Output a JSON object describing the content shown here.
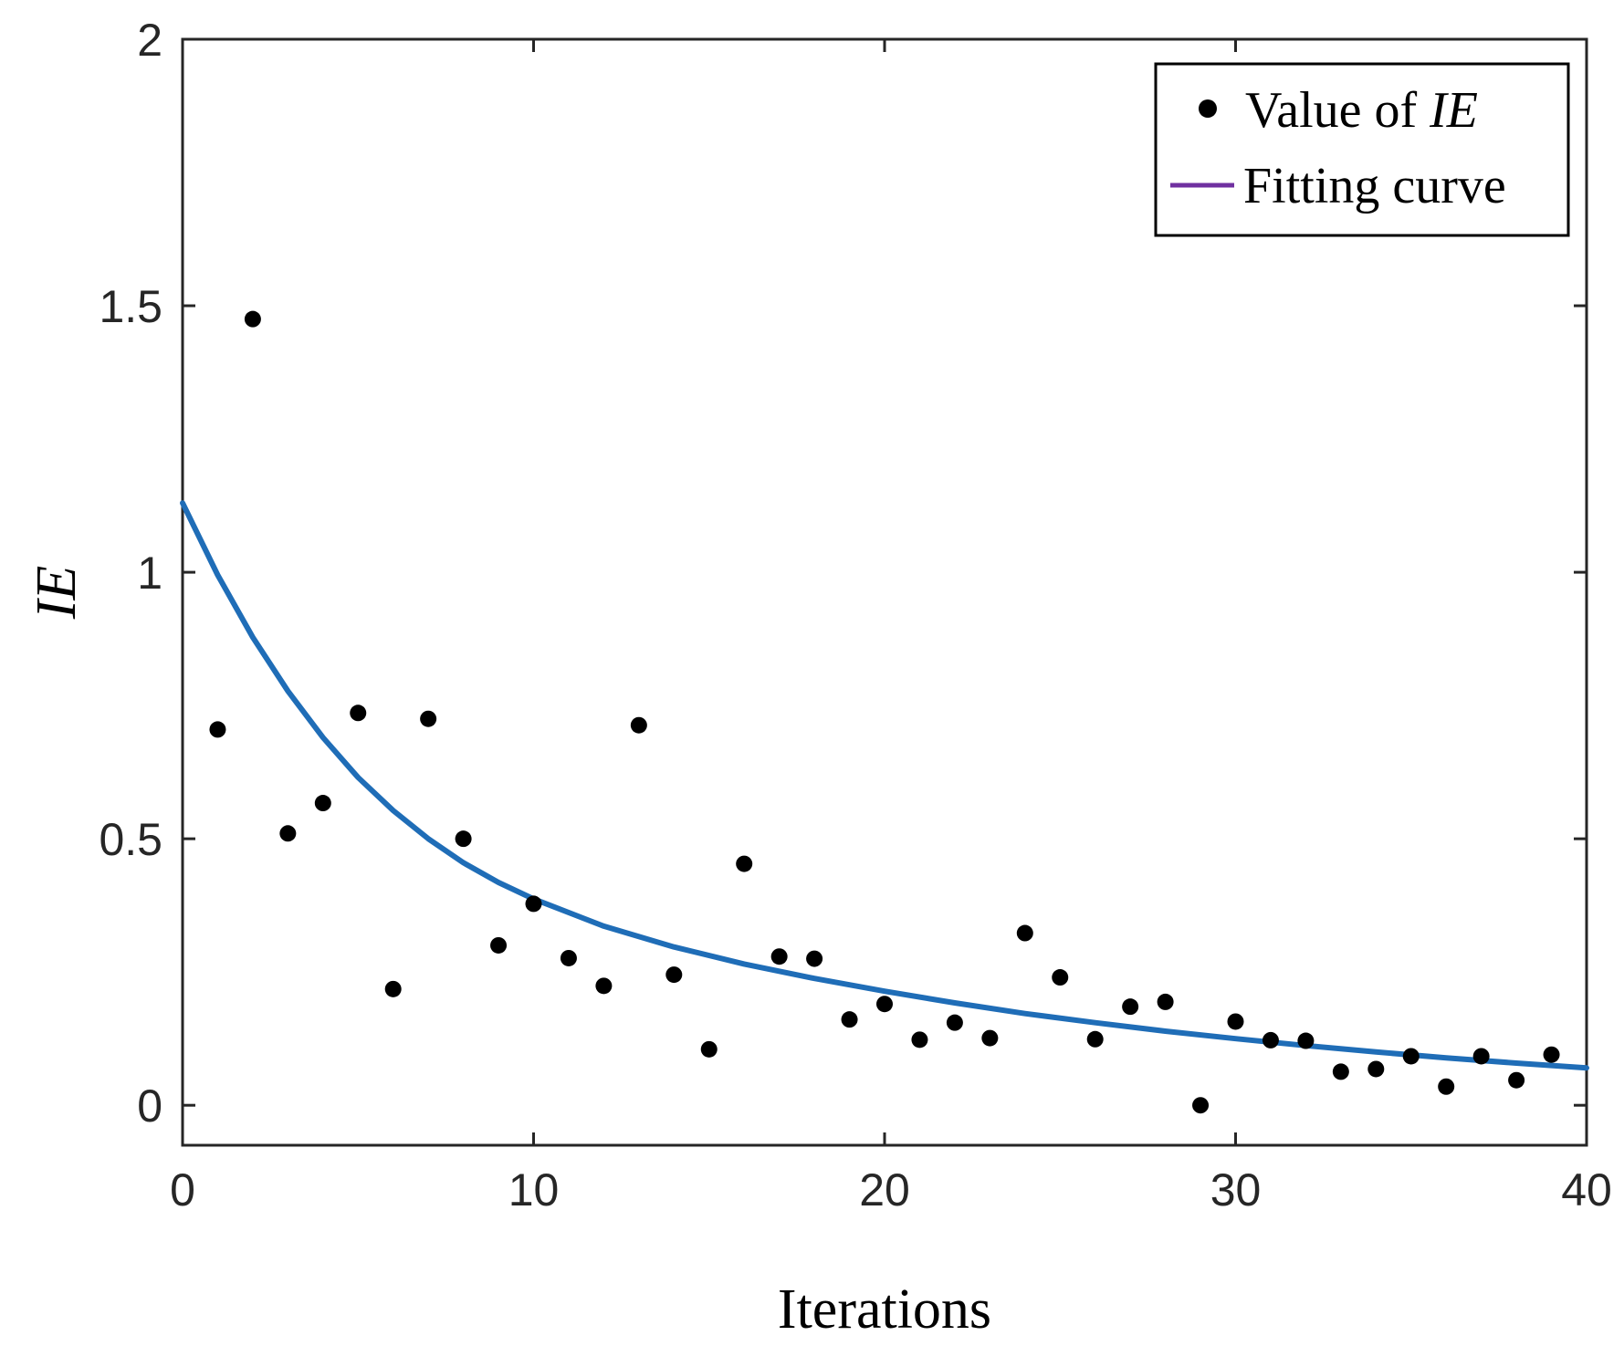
{
  "chart_data": {
    "type": "scatter",
    "title": "",
    "xlabel": "Iterations",
    "ylabel": "IE",
    "xlim": [
      0,
      40
    ],
    "ylim": [
      -0.075,
      2
    ],
    "x_ticks": [
      0,
      10,
      20,
      30,
      40
    ],
    "x_tick_labels": [
      "0",
      "10",
      "20",
      "30",
      "40"
    ],
    "y_ticks": [
      0,
      0.5,
      1,
      1.5,
      2
    ],
    "y_tick_labels": [
      "0",
      "0.5",
      "1",
      "1.5",
      "2"
    ],
    "grid": false,
    "legend_position": "top-right",
    "legend": [
      {
        "prefix": "Value of ",
        "italic": "IE",
        "marker": "dot"
      },
      {
        "prefix": "Fitting curve",
        "italic": "",
        "marker": "line"
      }
    ],
    "series": [
      {
        "name": "Value of IE",
        "kind": "scatter",
        "color": "#000000",
        "x": [
          1,
          2,
          3,
          4,
          5,
          6,
          7,
          8,
          9,
          10,
          11,
          12,
          13,
          14,
          15,
          16,
          17,
          18,
          19,
          20,
          21,
          22,
          23,
          24,
          25,
          26,
          27,
          28,
          29,
          30,
          31,
          32,
          33,
          34,
          35,
          36,
          37,
          38,
          39
        ],
        "y": [
          0.705,
          1.475,
          0.51,
          0.567,
          0.736,
          0.218,
          0.725,
          0.5,
          0.3,
          0.378,
          0.276,
          0.224,
          0.713,
          0.245,
          0.105,
          0.453,
          0.279,
          0.275,
          0.161,
          0.19,
          0.123,
          0.155,
          0.126,
          0.323,
          0.24,
          0.124,
          0.185,
          0.194,
          0.0,
          0.157,
          0.122,
          0.121,
          0.063,
          0.068,
          0.092,
          0.035,
          0.092,
          0.047,
          0.095
        ]
      },
      {
        "name": "Fitting curve",
        "kind": "line",
        "color": "#1f6db7",
        "x": [
          0,
          1,
          2,
          3,
          4,
          5,
          6,
          7,
          8,
          9,
          10,
          12,
          14,
          16,
          18,
          20,
          22,
          24,
          26,
          28,
          30,
          32,
          34,
          36,
          38,
          40
        ],
        "y": [
          1.13,
          0.995,
          0.878,
          0.777,
          0.69,
          0.615,
          0.553,
          0.5,
          0.455,
          0.418,
          0.387,
          0.336,
          0.297,
          0.265,
          0.238,
          0.214,
          0.192,
          0.172,
          0.155,
          0.139,
          0.125,
          0.112,
          0.1,
          0.089,
          0.079,
          0.07
        ]
      }
    ],
    "legend_line_color": "#7030a0"
  }
}
